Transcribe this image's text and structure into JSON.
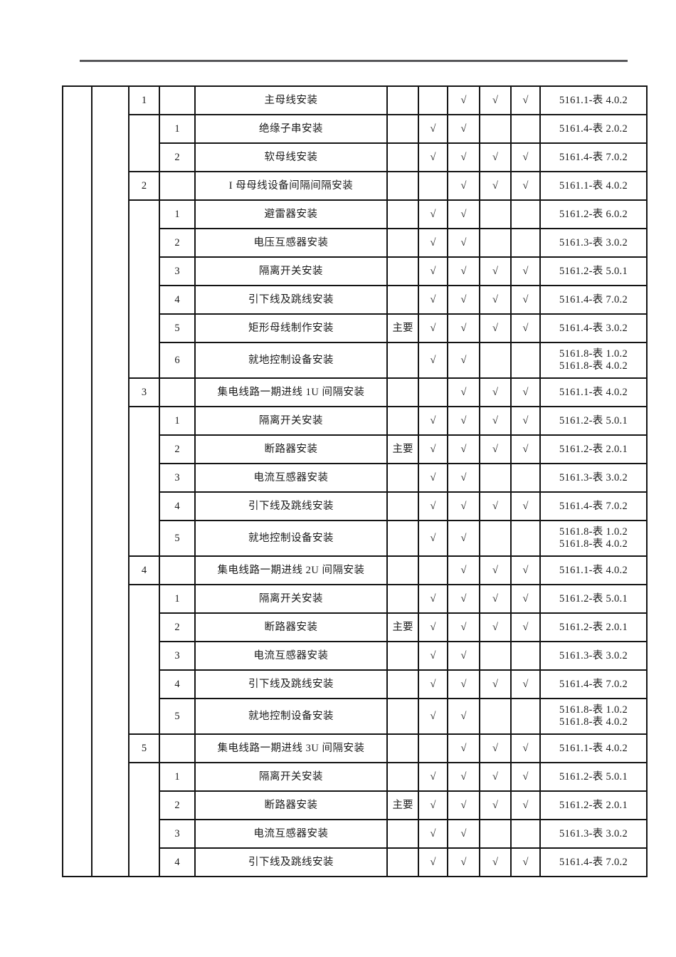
{
  "page": {
    "kind": "scanned-document-table-page",
    "header_rule_color": "#57575a",
    "border_color": "#141414",
    "cut_border_color": "#9b9b9b"
  },
  "table": {
    "check_glyph": "√",
    "major_label": "主要",
    "rows": [
      {
        "type": "parent",
        "num": "1",
        "label": "主母线安装",
        "major": "",
        "checks": [
          false,
          true,
          true,
          true
        ],
        "refs": [
          "5161.1-表 4.0.2"
        ]
      },
      {
        "type": "sub",
        "group_start": true,
        "group_span": 2,
        "num": "1",
        "label": "绝缘子串安装",
        "major": "",
        "checks": [
          true,
          true,
          false,
          false
        ],
        "refs": [
          "5161.4-表 2.0.2"
        ]
      },
      {
        "type": "sub",
        "num": "2",
        "label": "软母线安装",
        "major": "",
        "checks": [
          true,
          true,
          true,
          true
        ],
        "refs": [
          "5161.4-表 7.0.2"
        ]
      },
      {
        "type": "parent",
        "num": "2",
        "label": "I 母母线设备间隔间隔安装",
        "major": "",
        "checks": [
          false,
          true,
          true,
          true
        ],
        "refs": [
          "5161.1-表 4.0.2"
        ]
      },
      {
        "type": "sub",
        "group_start": true,
        "group_span": 6,
        "num": "1",
        "label": "避雷器安装",
        "major": "",
        "checks": [
          true,
          true,
          false,
          false
        ],
        "refs": [
          "5161.2-表 6.0.2"
        ]
      },
      {
        "type": "sub",
        "num": "2",
        "label": "电压互感器安装",
        "major": "",
        "checks": [
          true,
          true,
          false,
          false
        ],
        "refs": [
          "5161.3-表 3.0.2"
        ]
      },
      {
        "type": "sub",
        "num": "3",
        "label": "隔离开关安装",
        "major": "",
        "checks": [
          true,
          true,
          true,
          true
        ],
        "refs": [
          "5161.2-表 5.0.1"
        ]
      },
      {
        "type": "sub",
        "num": "4",
        "label": "引下线及跳线安装",
        "major": "",
        "checks": [
          true,
          true,
          true,
          true
        ],
        "refs": [
          "5161.4-表 7.0.2"
        ]
      },
      {
        "type": "sub",
        "num": "5",
        "label": "矩形母线制作安装",
        "major": "主要",
        "checks": [
          true,
          true,
          true,
          true
        ],
        "refs": [
          "5161.4-表 3.0.2"
        ]
      },
      {
        "type": "sub",
        "num": "6",
        "label": "就地控制设备安装",
        "major": "",
        "checks": [
          true,
          true,
          false,
          false
        ],
        "refs": [
          "5161.8-表 1.0.2",
          "5161.8-表 4.0.2"
        ]
      },
      {
        "type": "parent",
        "num": "3",
        "label": "集电线路一期进线 1U 间隔安装",
        "major": "",
        "checks": [
          false,
          true,
          true,
          true
        ],
        "refs": [
          "5161.1-表 4.0.2"
        ]
      },
      {
        "type": "sub",
        "group_start": true,
        "group_span": 5,
        "num": "1",
        "label": "隔离开关安装",
        "major": "",
        "checks": [
          true,
          true,
          true,
          true
        ],
        "refs": [
          "5161.2-表 5.0.1"
        ]
      },
      {
        "type": "sub",
        "num": "2",
        "label": "断路器安装",
        "major": "主要",
        "checks": [
          true,
          true,
          true,
          true
        ],
        "refs": [
          "5161.2-表 2.0.1"
        ]
      },
      {
        "type": "sub",
        "num": "3",
        "label": "电流互感器安装",
        "major": "",
        "checks": [
          true,
          true,
          false,
          false
        ],
        "refs": [
          "5161.3-表 3.0.2"
        ]
      },
      {
        "type": "sub",
        "num": "4",
        "label": "引下线及跳线安装",
        "major": "",
        "checks": [
          true,
          true,
          true,
          true
        ],
        "refs": [
          "5161.4-表 7.0.2"
        ]
      },
      {
        "type": "sub",
        "num": "5",
        "label": "就地控制设备安装",
        "major": "",
        "checks": [
          true,
          true,
          false,
          false
        ],
        "refs": [
          "5161.8-表 1.0.2",
          "5161.8-表 4.0.2"
        ]
      },
      {
        "type": "parent",
        "num": "4",
        "label": "集电线路一期进线 2U 间隔安装",
        "major": "",
        "checks": [
          false,
          true,
          true,
          true
        ],
        "refs": [
          "5161.1-表 4.0.2"
        ]
      },
      {
        "type": "sub",
        "group_start": true,
        "group_span": 5,
        "num": "1",
        "label": "隔离开关安装",
        "major": "",
        "checks": [
          true,
          true,
          true,
          true
        ],
        "refs": [
          "5161.2-表 5.0.1"
        ]
      },
      {
        "type": "sub",
        "num": "2",
        "label": "断路器安装",
        "major": "主要",
        "checks": [
          true,
          true,
          true,
          true
        ],
        "refs": [
          "5161.2-表 2.0.1"
        ]
      },
      {
        "type": "sub",
        "num": "3",
        "label": "电流互感器安装",
        "major": "",
        "checks": [
          true,
          true,
          false,
          false
        ],
        "refs": [
          "5161.3-表 3.0.2"
        ]
      },
      {
        "type": "sub",
        "num": "4",
        "label": "引下线及跳线安装",
        "major": "",
        "checks": [
          true,
          true,
          true,
          true
        ],
        "refs": [
          "5161.4-表 7.0.2"
        ]
      },
      {
        "type": "sub",
        "num": "5",
        "label": "就地控制设备安装",
        "major": "",
        "checks": [
          true,
          true,
          false,
          false
        ],
        "refs": [
          "5161.8-表 1.0.2",
          "5161.8-表 4.0.2"
        ]
      },
      {
        "type": "parent",
        "num": "5",
        "label": "集电线路一期进线 3U 间隔安装",
        "major": "",
        "checks": [
          false,
          true,
          true,
          true
        ],
        "refs": [
          "5161.1-表 4.0.2"
        ]
      },
      {
        "type": "sub",
        "group_start": true,
        "group_span": 4,
        "cut": true,
        "num": "1",
        "label": "隔离开关安装",
        "major": "",
        "checks": [
          true,
          true,
          true,
          true
        ],
        "refs": [
          "5161.2-表 5.0.1"
        ]
      },
      {
        "type": "sub",
        "num": "2",
        "label": "断路器安装",
        "major": "主要",
        "checks": [
          true,
          true,
          true,
          true
        ],
        "refs": [
          "5161.2-表 2.0.1"
        ]
      },
      {
        "type": "sub",
        "num": "3",
        "label": "电流互感器安装",
        "major": "",
        "checks": [
          true,
          true,
          false,
          false
        ],
        "refs": [
          "5161.3-表 3.0.2"
        ]
      },
      {
        "type": "sub",
        "num": "4",
        "label": "引下线及跳线安装",
        "major": "",
        "checks": [
          true,
          true,
          true,
          true
        ],
        "refs": [
          "5161.4-表 7.0.2"
        ]
      }
    ]
  }
}
